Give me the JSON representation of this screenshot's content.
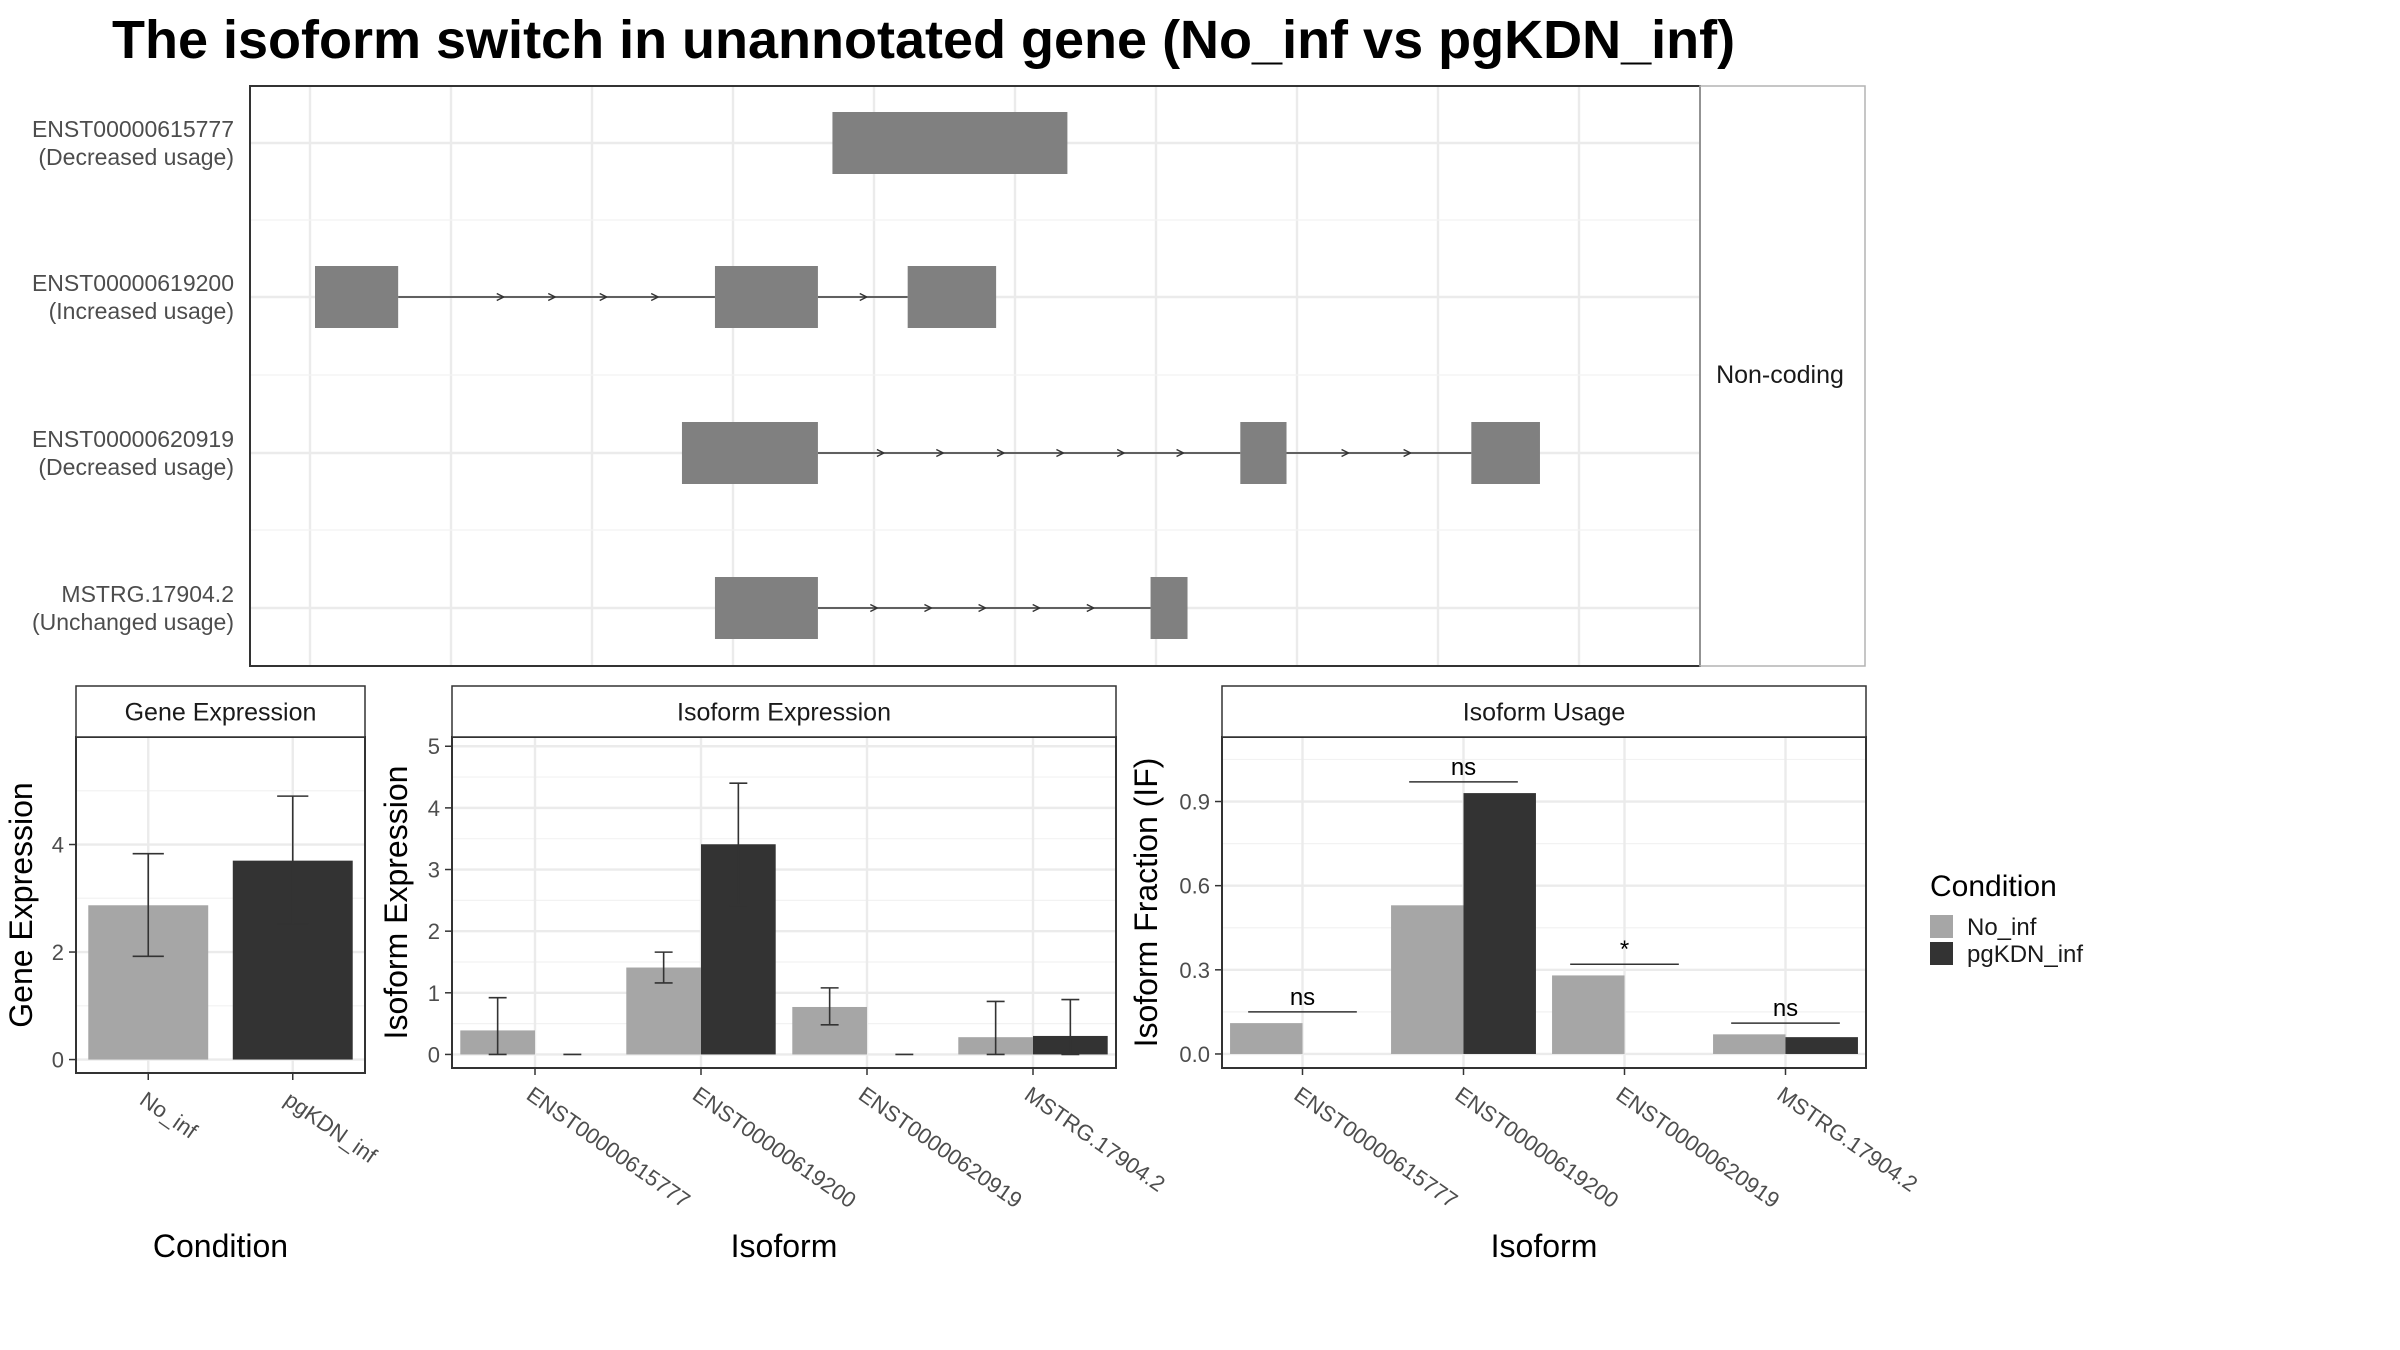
{
  "title": "The isoform switch in unannotated gene (No_inf vs pgKDN_inf)",
  "colors": {
    "No_inf": "#a6a6a6",
    "pgKDN_inf": "#333333",
    "exon": "#808080"
  },
  "legend": {
    "title": "Condition",
    "entries": [
      {
        "label": "No_inf",
        "color": "#a6a6a6"
      },
      {
        "label": "pgKDN_inf",
        "color": "#333333"
      }
    ]
  },
  "chart_data": [
    {
      "type": "gene-structure",
      "facet_label": "Non-coding",
      "isoforms": [
        {
          "id": "ENST00000615777",
          "usage": "(Decreased usage)",
          "exons": [
            [
              0.392,
              0.57
            ]
          ],
          "intron_arrows": []
        },
        {
          "id": "ENST00000619200",
          "usage": "(Increased usage)",
          "exons": [
            [
              0.0,
              0.063
            ],
            [
              0.303,
              0.381
            ],
            [
              0.449,
              0.516
            ]
          ],
          "intron_arrows": [
            0.143,
            0.182,
            0.221,
            0.26,
            0.418
          ]
        },
        {
          "id": "ENST00000620919",
          "usage": "(Decreased usage)",
          "exons": [
            [
              0.278,
              0.381
            ],
            [
              0.701,
              0.736
            ],
            [
              0.876,
              0.928
            ]
          ],
          "intron_arrows": [
            0.431,
            0.476,
            0.522,
            0.567,
            0.613,
            0.658,
            0.783,
            0.83
          ]
        },
        {
          "id": "MSTRG.17904.2",
          "usage": "(Unchanged usage)",
          "exons": [
            [
              0.303,
              0.381
            ],
            [
              0.633,
              0.661
            ]
          ],
          "intron_arrows": [
            0.426,
            0.467,
            0.508,
            0.549,
            0.59
          ]
        }
      ]
    },
    {
      "type": "bar",
      "title": "Gene Expression",
      "xlabel": "Condition",
      "ylabel": "Gene Expression",
      "categories": [
        "No_inf",
        "pgKDN_inf"
      ],
      "values": [
        2.87,
        3.7
      ],
      "errors": [
        [
          1.92,
          3.83
        ],
        [
          2.52,
          4.9
        ]
      ],
      "colors": [
        "#a6a6a6",
        "#333333"
      ],
      "ylim": [
        -0.25,
        6.0
      ],
      "yticks": [
        0,
        2,
        4
      ]
    },
    {
      "type": "bar",
      "title": "Isoform Expression",
      "xlabel": "Isoform",
      "ylabel": "Isoform Expression",
      "categories": [
        "ENST00000615777",
        "ENST00000619200",
        "ENST00000620919",
        "MSTRG.17904.2"
      ],
      "series": [
        {
          "name": "No_inf",
          "values": [
            0.39,
            1.41,
            0.77,
            0.28
          ],
          "errors": [
            [
              0.0,
              0.92
            ],
            [
              1.16,
              1.66
            ],
            [
              0.48,
              1.08
            ],
            [
              0.0,
              0.86
            ]
          ]
        },
        {
          "name": "pgKDN_inf",
          "values": [
            0.0,
            3.41,
            0.0,
            0.3
          ],
          "errors": [
            [
              0.0,
              0.0
            ],
            [
              2.42,
              4.4
            ],
            [
              0.0,
              0.0
            ],
            [
              0.0,
              0.89
            ]
          ]
        }
      ],
      "ylim": [
        -0.22,
        5.15
      ],
      "yticks": [
        0,
        1,
        2,
        3,
        4,
        5
      ]
    },
    {
      "type": "bar",
      "title": "Isoform Usage",
      "xlabel": "Isoform",
      "ylabel": "Isoform Fraction (IF)",
      "categories": [
        "ENST00000615777",
        "ENST00000619200",
        "ENST00000620919",
        "MSTRG.17904.2"
      ],
      "series": [
        {
          "name": "No_inf",
          "values": [
            0.11,
            0.53,
            0.28,
            0.07
          ]
        },
        {
          "name": "pgKDN_inf",
          "values": [
            0.0,
            0.93,
            0.0,
            0.06
          ]
        }
      ],
      "significance": [
        "ns",
        "ns",
        "*",
        "ns"
      ],
      "ylim": [
        -0.05,
        1.13
      ],
      "yticks": [
        0.0,
        0.3,
        0.6,
        0.9
      ],
      "ytick_labels": [
        "0.0",
        "0.3",
        "0.6",
        "0.9"
      ]
    }
  ]
}
